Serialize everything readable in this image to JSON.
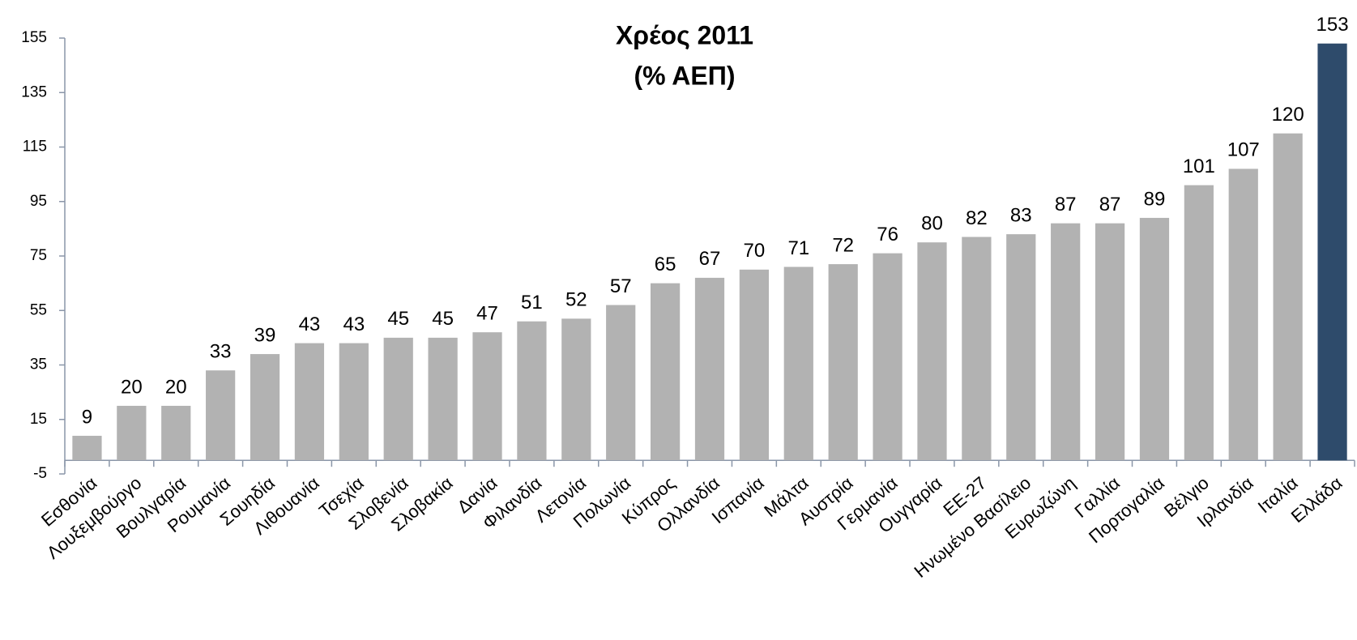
{
  "chart_data": {
    "type": "bar",
    "title": [
      "Χρέος 2011",
      "(% ΑΕΠ)"
    ],
    "categories": [
      "Εσθονία",
      "Λουξεμβούργο",
      "Βουλγαρία",
      "Ρουμανία",
      "Σουηδία",
      "Λιθουανία",
      "Τσεχία",
      "Σλοβενία",
      "Σλοβακία",
      "Δανία",
      "Φιλανδία",
      "Λετονία",
      "Πολωνία",
      "Κύπρος",
      "Ολλανδία",
      "Ισπανία",
      "Μάλτα",
      "Αυστρία",
      "Γερμανία",
      "Ουγγαρία",
      "ΕΕ-27",
      "Ηνωμένο Βασίλειο",
      "Ευρωζώνη",
      "Γαλλία",
      "Πορτογαλία",
      "Βέλγιο",
      "Ιρλανδία",
      "Ιταλία",
      "Ελλάδα"
    ],
    "values": [
      9,
      20,
      20,
      33,
      39,
      43,
      43,
      45,
      45,
      47,
      51,
      52,
      57,
      65,
      67,
      70,
      71,
      72,
      76,
      80,
      82,
      83,
      87,
      87,
      89,
      101,
      107,
      120,
      153
    ],
    "colors": [
      "#b2b2b2",
      "#b2b2b2",
      "#b2b2b2",
      "#b2b2b2",
      "#b2b2b2",
      "#b2b2b2",
      "#b2b2b2",
      "#b2b2b2",
      "#b2b2b2",
      "#b2b2b2",
      "#b2b2b2",
      "#b2b2b2",
      "#b2b2b2",
      "#b2b2b2",
      "#b2b2b2",
      "#b2b2b2",
      "#b2b2b2",
      "#b2b2b2",
      "#b2b2b2",
      "#b2b2b2",
      "#b2b2b2",
      "#b2b2b2",
      "#b2b2b2",
      "#b2b2b2",
      "#b2b2b2",
      "#b2b2b2",
      "#b2b2b2",
      "#b2b2b2",
      "#2e4b6b"
    ],
    "ylim": [
      -5,
      155
    ],
    "yticks": [
      -5,
      15,
      35,
      55,
      75,
      95,
      115,
      135,
      155
    ],
    "grid": false
  }
}
